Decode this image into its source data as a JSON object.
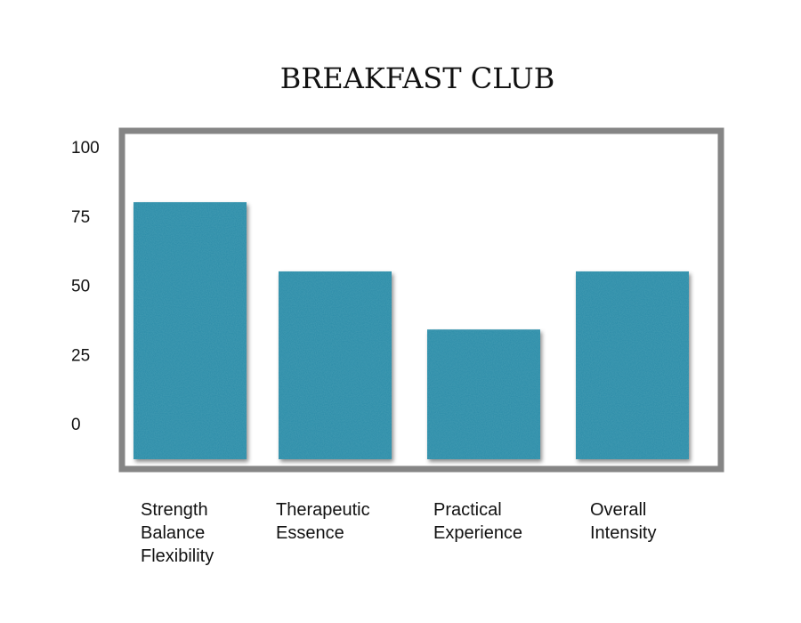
{
  "chart_data": {
    "type": "bar",
    "title": "BREAKFAST CLUB",
    "xlabel": "",
    "ylabel": "",
    "ylim": [
      -15,
      105
    ],
    "y_ticks": [
      100,
      75,
      50,
      25,
      0
    ],
    "categories": [
      [
        "Strength",
        "Balance",
        "Flexibility"
      ],
      [
        "Therapeutic",
        "Essence"
      ],
      [
        "Practical",
        "Experience"
      ],
      [
        "Overall",
        "Intensity"
      ]
    ],
    "values": [
      80,
      55,
      34,
      55
    ],
    "grid": false,
    "legend": "none",
    "colors": {
      "bar": "#2c8ba8",
      "bar_texture": "#1f6f88",
      "frame": "#858585"
    }
  }
}
